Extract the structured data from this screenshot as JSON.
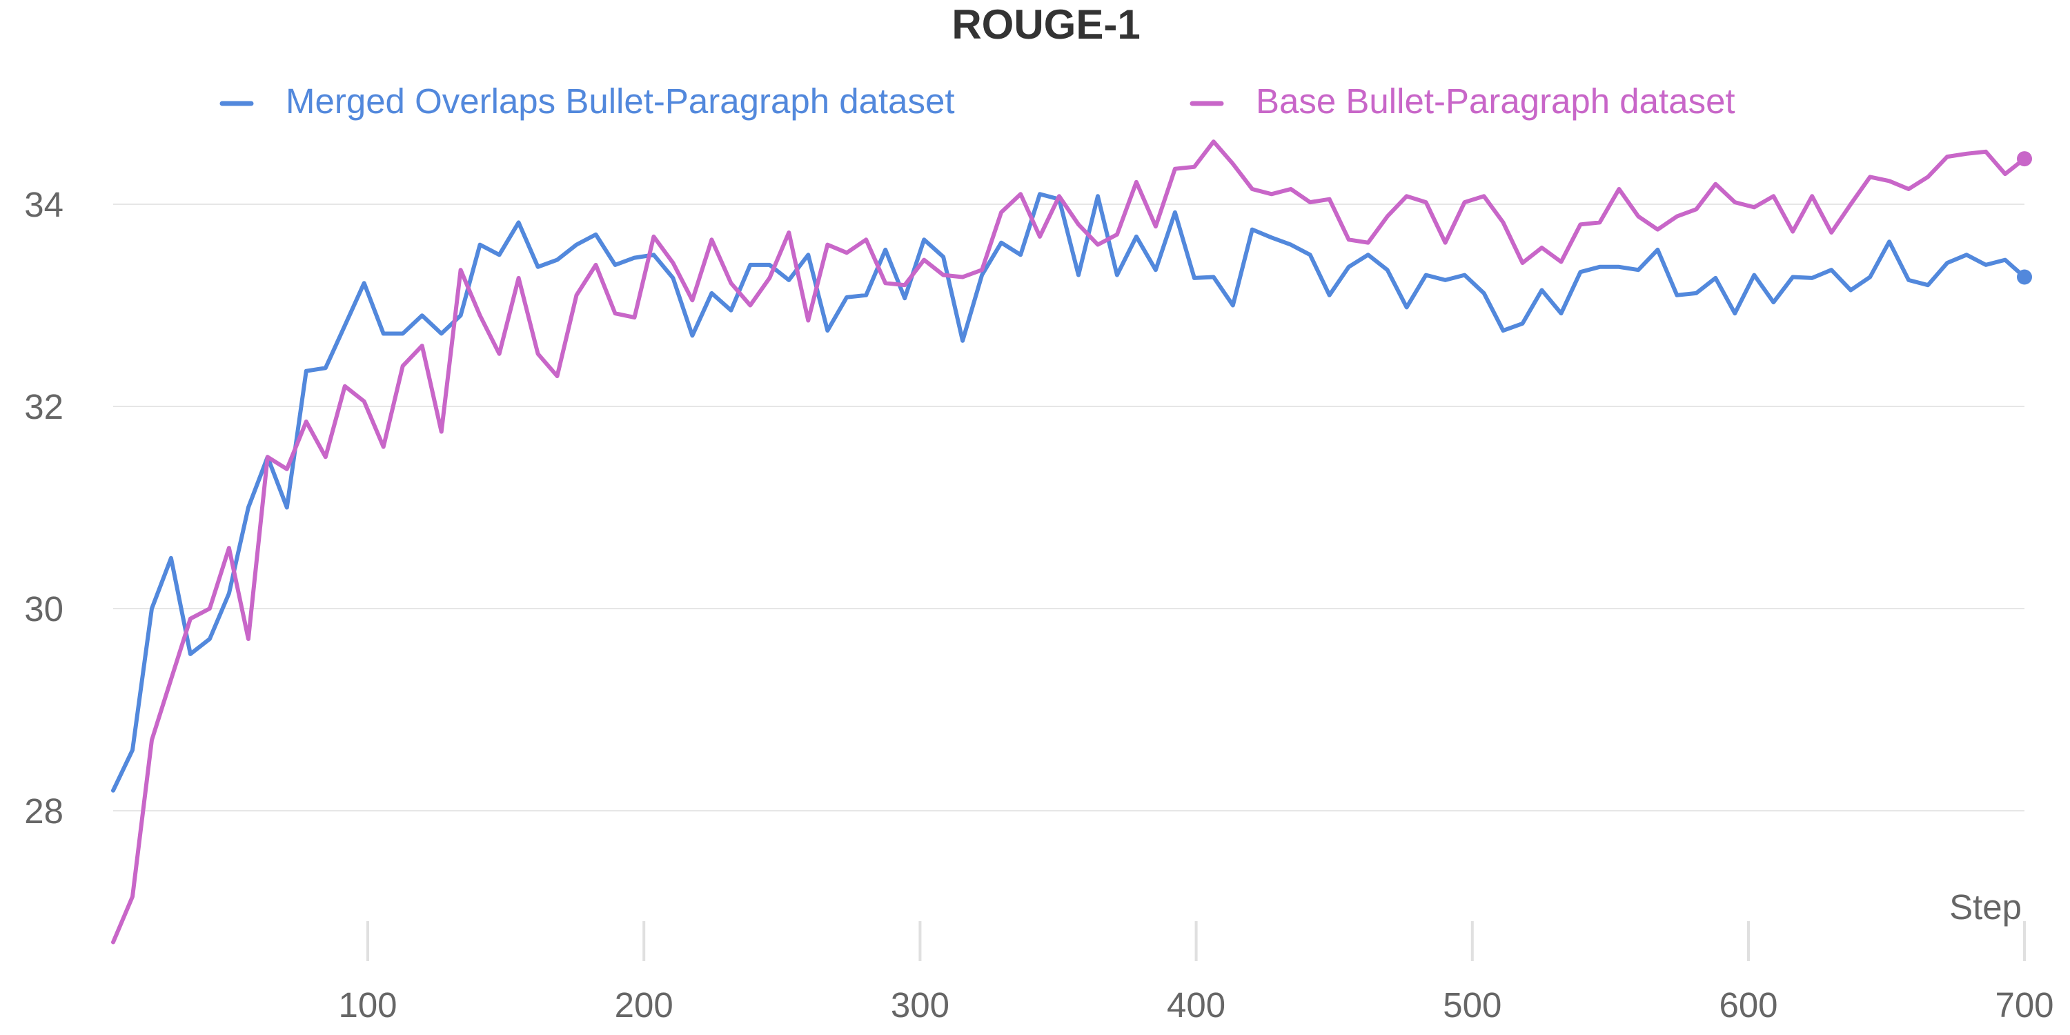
{
  "chart_data": {
    "type": "line",
    "title": "ROUGE-1",
    "xlabel": "Step",
    "ylabel": "",
    "xlim": [
      0,
      700
    ],
    "ylim": [
      26.5,
      36.0
    ],
    "x_ticks": [
      100,
      200,
      300,
      400,
      500,
      600,
      700
    ],
    "y_ticks": [
      28,
      30,
      32,
      34
    ],
    "grid": "horizontal",
    "legend": "top",
    "x": [
      7,
      14,
      21,
      28,
      35,
      42,
      49,
      56,
      63,
      70,
      77,
      84,
      91,
      98,
      105,
      112,
      119,
      126,
      133,
      140,
      147,
      154,
      161,
      168,
      175,
      182,
      189,
      196,
      203,
      210,
      217,
      224,
      231,
      238,
      245,
      252,
      259,
      266,
      273,
      280,
      287,
      294,
      301,
      308,
      315,
      322,
      329,
      336,
      343,
      350,
      357,
      364,
      371,
      378,
      385,
      392,
      399,
      406,
      413,
      420,
      427,
      434,
      441,
      448,
      455,
      462,
      469,
      476,
      483,
      490,
      497,
      504,
      511,
      518,
      525,
      532,
      539,
      546,
      553,
      560,
      567,
      574,
      581,
      588,
      595,
      602,
      609,
      616,
      623,
      630,
      637,
      644,
      651,
      658,
      665,
      672,
      679,
      686,
      693,
      700
    ],
    "series": [
      {
        "name": "Merged Overlaps Bullet-Paragraph dataset",
        "color": "#5288dc",
        "values": [
          28.2,
          28.6,
          30.0,
          30.5,
          29.55,
          29.7,
          30.15,
          31.0,
          31.5,
          31.0,
          32.35,
          32.38,
          32.8,
          33.22,
          32.72,
          32.72,
          32.9,
          32.72,
          32.9,
          33.6,
          33.5,
          33.82,
          33.38,
          33.45,
          33.6,
          33.7,
          33.4,
          33.47,
          33.5,
          33.27,
          32.7,
          33.12,
          32.95,
          33.4,
          33.4,
          33.25,
          33.5,
          32.75,
          33.08,
          33.1,
          33.55,
          33.07,
          33.65,
          33.48,
          32.65,
          33.3,
          33.62,
          33.5,
          34.1,
          34.05,
          33.3,
          34.08,
          33.3,
          33.68,
          33.35,
          33.92,
          33.27,
          33.28,
          33.0,
          33.75,
          33.67,
          33.6,
          33.5,
          33.1,
          33.38,
          33.5,
          33.35,
          32.98,
          33.3,
          33.25,
          33.3,
          33.12,
          32.75,
          32.82,
          33.15,
          32.92,
          33.33,
          33.38,
          33.38,
          33.35,
          33.55,
          33.1,
          33.12,
          33.27,
          32.92,
          33.3,
          33.03,
          33.28,
          33.27,
          33.35,
          33.15,
          33.28,
          33.63,
          33.25,
          33.2,
          33.42,
          33.5,
          33.4,
          33.45,
          33.28
        ]
      },
      {
        "name": "Base Bullet-Paragraph dataset",
        "color": "#c866c8",
        "values": [
          26.7,
          27.15,
          28.7,
          29.3,
          29.9,
          30.0,
          30.6,
          29.7,
          31.5,
          31.38,
          31.85,
          31.5,
          32.2,
          32.05,
          31.6,
          32.4,
          32.6,
          31.75,
          33.35,
          32.9,
          32.52,
          33.27,
          32.52,
          32.3,
          33.1,
          33.4,
          32.92,
          32.88,
          33.68,
          33.42,
          33.05,
          33.65,
          33.22,
          33.0,
          33.27,
          33.72,
          32.85,
          33.6,
          33.52,
          33.65,
          33.22,
          33.2,
          33.45,
          33.3,
          33.28,
          33.35,
          33.92,
          34.1,
          33.68,
          34.08,
          33.8,
          33.6,
          33.7,
          34.22,
          33.78,
          34.35,
          34.37,
          34.62,
          34.4,
          34.15,
          34.1,
          34.15,
          34.02,
          34.05,
          33.65,
          33.62,
          33.88,
          34.08,
          34.02,
          33.62,
          34.02,
          34.08,
          33.82,
          33.42,
          33.57,
          33.43,
          33.8,
          33.82,
          34.15,
          33.88,
          33.75,
          33.88,
          33.95,
          34.2,
          34.02,
          33.97,
          34.08,
          33.73,
          34.08,
          33.72,
          34.0,
          34.27,
          34.23,
          34.15,
          34.27,
          34.47,
          34.5,
          34.52,
          34.3,
          34.45
        ]
      }
    ]
  }
}
